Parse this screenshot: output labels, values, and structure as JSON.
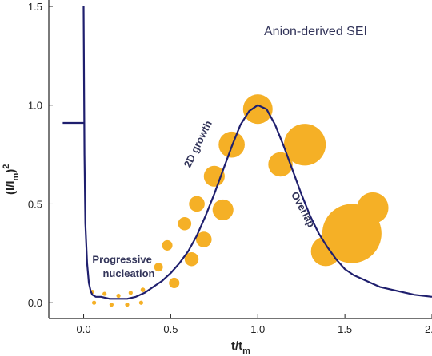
{
  "chart_data": {
    "type": "line",
    "title": "Anion-derived SEI",
    "xlabel_main": "t/t",
    "xlabel_sub": "m",
    "ylabel_main": "(I/I",
    "ylabel_sub": "m",
    "ylabel_tail": ")",
    "ylabel_sup": "2",
    "xlim": [
      -0.2,
      2.0
    ],
    "ylim": [
      -0.08,
      1.5
    ],
    "x_ticks": [
      0.0,
      0.5,
      1.0,
      1.5,
      2.0
    ],
    "x_tick_labels": [
      "0.0",
      "0.5",
      "1.0",
      "1.5",
      "2.0"
    ],
    "y_ticks": [
      0.0,
      0.5,
      1.0,
      1.5
    ],
    "y_tick_labels": [
      "0.0",
      "0.5",
      "1.0",
      "1.5"
    ],
    "grid": false,
    "colors": {
      "line": "#1f1f6e",
      "circles": "#f5b026",
      "axis": "#222222",
      "text": "#33355a"
    },
    "series": [
      {
        "values_x": [
          0.0,
          0.005,
          0.01,
          0.02,
          0.03,
          0.04,
          0.05,
          0.07,
          0.1,
          0.15,
          0.2,
          0.25,
          0.3,
          0.35,
          0.4,
          0.45,
          0.5,
          0.55,
          0.6,
          0.65,
          0.7,
          0.75,
          0.8,
          0.85,
          0.9,
          0.95,
          1.0,
          1.05,
          1.1,
          1.15,
          1.2,
          1.25,
          1.3,
          1.35,
          1.4,
          1.45,
          1.5,
          1.55,
          1.6,
          1.65,
          1.7,
          1.8,
          1.9,
          2.0
        ],
        "values_y": [
          1.5,
          0.75,
          0.4,
          0.2,
          0.1,
          0.06,
          0.04,
          0.03,
          0.03,
          0.02,
          0.02,
          0.02,
          0.03,
          0.05,
          0.08,
          0.11,
          0.15,
          0.2,
          0.26,
          0.34,
          0.44,
          0.55,
          0.67,
          0.79,
          0.9,
          0.97,
          1.0,
          0.98,
          0.9,
          0.79,
          0.67,
          0.55,
          0.44,
          0.35,
          0.28,
          0.22,
          0.17,
          0.14,
          0.12,
          0.1,
          0.08,
          0.06,
          0.04,
          0.03
        ]
      }
    ],
    "initial_segment": {
      "x": [
        -0.12,
        0.0
      ],
      "y": [
        0.91,
        0.91
      ]
    },
    "circles": [
      {
        "x": 0.05,
        "y": 0.055,
        "r": 0.012
      },
      {
        "x": 0.12,
        "y": 0.045,
        "r": 0.012
      },
      {
        "x": 0.2,
        "y": 0.035,
        "r": 0.012
      },
      {
        "x": 0.27,
        "y": 0.05,
        "r": 0.012
      },
      {
        "x": 0.34,
        "y": 0.065,
        "r": 0.013
      },
      {
        "x": 0.06,
        "y": 0.0,
        "r": 0.012
      },
      {
        "x": 0.16,
        "y": -0.01,
        "r": 0.012
      },
      {
        "x": 0.25,
        "y": -0.01,
        "r": 0.012
      },
      {
        "x": 0.33,
        "y": 0.0,
        "r": 0.012
      },
      {
        "x": 0.43,
        "y": 0.18,
        "r": 0.025
      },
      {
        "x": 0.48,
        "y": 0.29,
        "r": 0.03
      },
      {
        "x": 0.52,
        "y": 0.1,
        "r": 0.03
      },
      {
        "x": 0.58,
        "y": 0.4,
        "r": 0.038
      },
      {
        "x": 0.62,
        "y": 0.22,
        "r": 0.04
      },
      {
        "x": 0.65,
        "y": 0.5,
        "r": 0.045
      },
      {
        "x": 0.69,
        "y": 0.32,
        "r": 0.045
      },
      {
        "x": 0.75,
        "y": 0.64,
        "r": 0.06
      },
      {
        "x": 0.8,
        "y": 0.47,
        "r": 0.06
      },
      {
        "x": 0.85,
        "y": 0.8,
        "r": 0.075
      },
      {
        "x": 1.0,
        "y": 0.98,
        "r": 0.085
      },
      {
        "x": 1.13,
        "y": 0.7,
        "r": 0.07
      },
      {
        "x": 1.27,
        "y": 0.8,
        "r": 0.12
      },
      {
        "x": 1.39,
        "y": 0.26,
        "r": 0.085
      },
      {
        "x": 1.54,
        "y": 0.35,
        "r": 0.17
      },
      {
        "x": 1.66,
        "y": 0.48,
        "r": 0.09
      }
    ],
    "annotations": [
      {
        "text": "Progressive",
        "x": 0.05,
        "y": 0.2,
        "angle": 0
      },
      {
        "text": "nucleation",
        "x": 0.11,
        "y": 0.13,
        "angle": 0
      },
      {
        "text": "2D growth",
        "x": 0.61,
        "y": 0.68,
        "angle": -64
      },
      {
        "text": "Overlap",
        "x": 1.19,
        "y": 0.55,
        "angle": 62
      }
    ]
  }
}
